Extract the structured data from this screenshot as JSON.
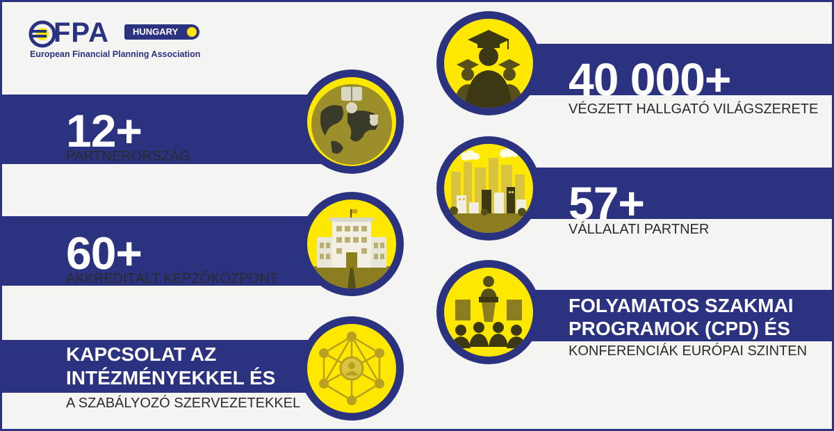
{
  "logo": {
    "name": "EFPA",
    "country": "HUNGARY",
    "subtitle": "European Financial Planning Association"
  },
  "colors": {
    "navy": "#2b3280",
    "yellow": "#ffe800",
    "background": "#f4f4f2"
  },
  "stats_left": [
    {
      "number": "12+",
      "label": "PARTNERORSZÁG",
      "icon": "globe-icon"
    },
    {
      "number": "60+",
      "label": "AKKREDITÁLT KÉPZŐKÖZPONT",
      "icon": "building-icon"
    },
    {
      "heading_line1": "KAPCSOLAT AZ",
      "heading_line2": "INTÉZMÉNYEKKEL ÉS",
      "label": "A SZABÁLYOZÓ SZERVEZETEKKEL",
      "icon": "network-icon"
    }
  ],
  "stats_right": [
    {
      "number": "40 000+",
      "label": "VÉGZETT HALLGATÓ VILÁGSZERETE",
      "icon": "graduates-icon"
    },
    {
      "number": "57+",
      "label": "VÁLLALATI PARTNER",
      "icon": "city-icon"
    },
    {
      "heading_line1": "FOLYAMATOS SZAKMAI",
      "heading_line2": "PROGRAMOK (CPD) ÉS",
      "label": "KONFERENCIÁK  EURÓPAI SZINTEN",
      "icon": "conference-icon"
    }
  ]
}
